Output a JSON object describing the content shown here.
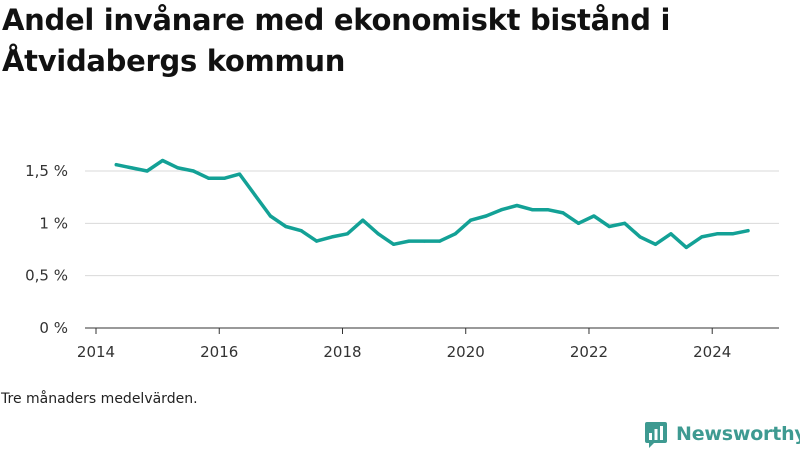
{
  "title": "Andel invånare med ekonomiskt bistånd i Åtvidabergs kommun",
  "footnote": "Tre månaders medelvärden.",
  "brand": {
    "name": "Newsworthy",
    "logo_icon": "newsworthy-logo-icon",
    "color": "#3e9a91"
  },
  "chart_data": {
    "type": "line",
    "title": "Andel invånare med ekonomiskt bistånd i Åtvidabergs kommun",
    "xlabel": "",
    "ylabel": "",
    "xlim": [
      2014,
      2025.1
    ],
    "ylim": [
      0,
      1.5
    ],
    "x_ticks": [
      {
        "value": 2014,
        "label": "2014"
      },
      {
        "value": 2016,
        "label": "2016"
      },
      {
        "value": 2018,
        "label": "2018"
      },
      {
        "value": 2020,
        "label": "2020"
      },
      {
        "value": 2022,
        "label": "2022"
      },
      {
        "value": 2024,
        "label": "2024"
      }
    ],
    "y_ticks": [
      {
        "value": 0,
        "label": "0 %"
      },
      {
        "value": 0.5,
        "label": "0,5 %"
      },
      {
        "value": 1,
        "label": "1 %"
      },
      {
        "value": 1.5,
        "label": "1,5 %"
      }
    ],
    "grid": true,
    "legend": "none",
    "line_color": "#13a196",
    "series": [
      {
        "x": [
          2014.33,
          2014.58,
          2014.83,
          2015.08,
          2015.33,
          2015.58,
          2015.83,
          2016.08,
          2016.33,
          2016.58,
          2016.83,
          2017.08,
          2017.33,
          2017.58,
          2017.83,
          2018.08,
          2018.33,
          2018.58,
          2018.83,
          2019.08,
          2019.33,
          2019.58,
          2019.83,
          2020.08,
          2020.33,
          2020.58,
          2020.83,
          2021.08,
          2021.33,
          2021.58,
          2021.83,
          2022.08,
          2022.33,
          2022.58,
          2022.83,
          2023.08,
          2023.33,
          2023.58,
          2023.83,
          2024.08,
          2024.33,
          2024.58
        ],
        "values": [
          1.56,
          1.53,
          1.5,
          1.6,
          1.53,
          1.5,
          1.43,
          1.43,
          1.47,
          1.27,
          1.07,
          0.97,
          0.93,
          0.83,
          0.87,
          0.9,
          1.03,
          0.9,
          0.8,
          0.83,
          0.83,
          0.83,
          0.9,
          1.03,
          1.07,
          1.13,
          1.17,
          1.13,
          1.13,
          1.1,
          1.0,
          1.07,
          0.97,
          1.0,
          0.87,
          0.8,
          0.9,
          0.77,
          0.87,
          0.9,
          0.9,
          0.93
        ]
      }
    ]
  }
}
